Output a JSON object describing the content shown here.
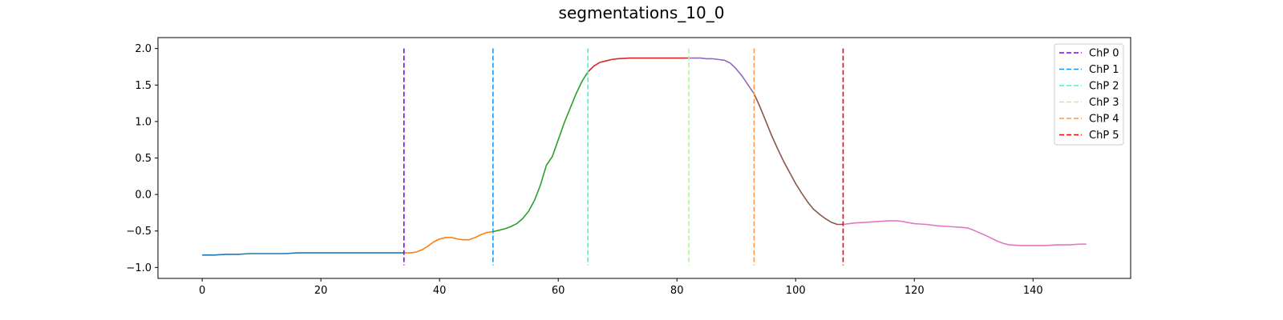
{
  "chart_data": {
    "type": "line",
    "title": "segmentations_10_0",
    "xlabel": "",
    "ylabel": "",
    "xlim": [
      -7.45,
      156.45
    ],
    "ylim": [
      -1.15,
      2.15
    ],
    "xticks": [
      0,
      20,
      40,
      60,
      80,
      100,
      120,
      140
    ],
    "xtick_labels": [
      "0",
      "20",
      "40",
      "60",
      "80",
      "100",
      "120",
      "140"
    ],
    "yticks": [
      -1.0,
      -0.5,
      0.0,
      0.5,
      1.0,
      1.5,
      2.0
    ],
    "ytick_labels": [
      "−1.0",
      "−0.5",
      "0.0",
      "0.5",
      "1.0",
      "1.5",
      "2.0"
    ],
    "grid": false,
    "legend_position": "top-right",
    "series": [
      {
        "color": "#1f77b4",
        "x": [
          0,
          2,
          4,
          6,
          8,
          10,
          12,
          14,
          16,
          18,
          20,
          22,
          24,
          26,
          28,
          30,
          32,
          34
        ],
        "y": [
          -0.83,
          -0.83,
          -0.82,
          -0.82,
          -0.81,
          -0.81,
          -0.81,
          -0.81,
          -0.8,
          -0.8,
          -0.8,
          -0.8,
          -0.8,
          -0.8,
          -0.8,
          -0.8,
          -0.8,
          -0.8
        ]
      },
      {
        "color": "#ff7f0e",
        "x": [
          34,
          35,
          36,
          37,
          38,
          39,
          40,
          41,
          42,
          43,
          44,
          45,
          46,
          47,
          48,
          49
        ],
        "y": [
          -0.8,
          -0.8,
          -0.79,
          -0.76,
          -0.71,
          -0.65,
          -0.61,
          -0.59,
          -0.59,
          -0.61,
          -0.62,
          -0.62,
          -0.59,
          -0.55,
          -0.52,
          -0.51
        ]
      },
      {
        "color": "#2ca02c",
        "x": [
          49,
          50,
          51,
          52,
          53,
          54,
          55,
          56,
          57,
          58,
          59,
          60,
          61,
          62,
          63,
          64,
          65
        ],
        "y": [
          -0.51,
          -0.49,
          -0.47,
          -0.44,
          -0.4,
          -0.33,
          -0.23,
          -0.08,
          0.13,
          0.4,
          0.52,
          0.75,
          0.98,
          1.18,
          1.38,
          1.55,
          1.68
        ]
      },
      {
        "color": "#d62728",
        "x": [
          65,
          66,
          67,
          68,
          69,
          70,
          72,
          74,
          76,
          78,
          80,
          82
        ],
        "y": [
          1.68,
          1.76,
          1.81,
          1.83,
          1.85,
          1.86,
          1.87,
          1.87,
          1.87,
          1.87,
          1.87,
          1.87
        ]
      },
      {
        "color": "#9467bd",
        "x": [
          82,
          83,
          84,
          85,
          86,
          87,
          88,
          89,
          90,
          91,
          92,
          93
        ],
        "y": [
          1.87,
          1.87,
          1.87,
          1.86,
          1.86,
          1.85,
          1.84,
          1.8,
          1.72,
          1.62,
          1.5,
          1.38
        ]
      },
      {
        "color": "#8c564b",
        "x": [
          93,
          94,
          95,
          96,
          97,
          98,
          99,
          100,
          101,
          102,
          103,
          104,
          105,
          106,
          107,
          108
        ],
        "y": [
          1.38,
          1.2,
          1.0,
          0.8,
          0.62,
          0.45,
          0.3,
          0.15,
          0.02,
          -0.1,
          -0.2,
          -0.27,
          -0.33,
          -0.38,
          -0.41,
          -0.41
        ]
      },
      {
        "color": "#e377c2",
        "x": [
          108,
          110,
          112,
          114,
          116,
          117,
          118,
          120,
          122,
          124,
          126,
          128,
          129,
          130,
          132,
          134,
          135,
          136,
          138,
          140,
          142,
          144,
          146,
          148,
          149
        ],
        "y": [
          -0.41,
          -0.39,
          -0.38,
          -0.37,
          -0.36,
          -0.36,
          -0.37,
          -0.4,
          -0.41,
          -0.43,
          -0.44,
          -0.45,
          -0.46,
          -0.49,
          -0.56,
          -0.64,
          -0.67,
          -0.69,
          -0.7,
          -0.7,
          -0.7,
          -0.69,
          -0.69,
          -0.68,
          -0.68
        ]
      }
    ],
    "changepoints": [
      {
        "name": "ChP 0",
        "x": 34,
        "color": "#8000ff",
        "y_range": [
          -0.97,
          2.0
        ]
      },
      {
        "name": "ChP 1",
        "x": 49,
        "color": "#1996f3",
        "y_range": [
          -0.97,
          2.0
        ]
      },
      {
        "name": "ChP 2",
        "x": 65,
        "color": "#4cf2ce",
        "y_range": [
          -0.97,
          2.0
        ]
      },
      {
        "name": "ChP 3",
        "x": 82,
        "color": "#b2f396",
        "y_range": [
          -0.97,
          2.0
        ]
      },
      {
        "name": "ChP 4",
        "x": 93,
        "color": "#ff964f",
        "y_range": [
          -0.97,
          2.0
        ]
      },
      {
        "name": "ChP 5",
        "x": 108,
        "color": "#ff0000",
        "y_range": [
          -0.97,
          2.0
        ]
      }
    ]
  }
}
